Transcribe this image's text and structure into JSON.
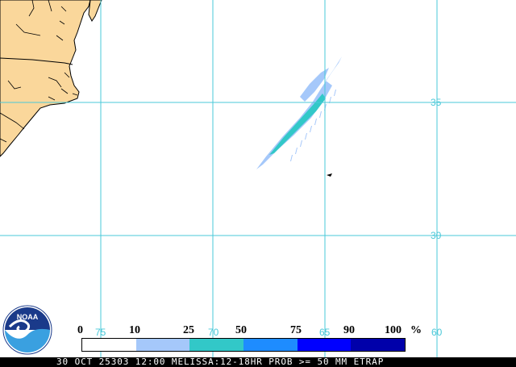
{
  "map": {
    "latitudes": [
      {
        "value": 35,
        "label": "35"
      },
      {
        "value": 30,
        "label": "30"
      }
    ],
    "longitudes": [
      {
        "value": 75,
        "label": "75"
      },
      {
        "value": 70,
        "label": "70"
      },
      {
        "value": 65,
        "label": "65"
      },
      {
        "value": 60,
        "label": "60"
      }
    ],
    "colors": {
      "land": "#fad79b",
      "ocean": "#ffffff",
      "grid": "#4ac8d8",
      "border": "#000000"
    }
  },
  "legend": {
    "numbers": [
      "0",
      "10",
      "25",
      "50",
      "75",
      "90",
      "100"
    ],
    "unit": "%",
    "colors": [
      "#ffffff",
      "#a5c8fa",
      "#32c8c8",
      "#1e8cff",
      "#0000ff",
      "#0000aa"
    ]
  },
  "caption": {
    "text": "30 OCT 25303 12:00 MELISSA:12-18HR PROB >= 50 MM ETRAP"
  },
  "logo": {
    "text": "NOAA"
  }
}
